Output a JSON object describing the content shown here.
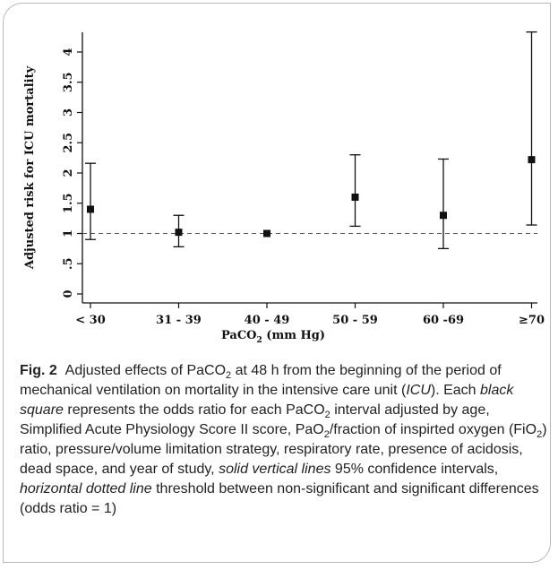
{
  "chart_data": {
    "type": "scatter",
    "subtype": "point-with-error-bars",
    "xlabel": "PaCO2 (mm Hg)",
    "xlabel_main": "PaCO",
    "xlabel_sub": "2",
    "xlabel_rest": " (mm Hg)",
    "ylabel": "Adjusted risk for ICU mortality",
    "ylim": [
      0,
      4.5
    ],
    "yticks": [
      0,
      0.5,
      1,
      1.5,
      2,
      2.5,
      3,
      3.5,
      4
    ],
    "ytick_labels": [
      "0",
      ".5",
      "1",
      "1.5",
      "2",
      "2.5",
      "3",
      "3.5",
      "4"
    ],
    "categories": [
      "< 30",
      "31 - 39",
      "40 - 49",
      "50 - 59",
      "60 -69",
      "≥70"
    ],
    "values": [
      1.4,
      1.02,
      1.0,
      1.6,
      1.3,
      2.22
    ],
    "ci_lower": [
      0.9,
      0.78,
      1.0,
      1.12,
      0.75,
      1.14
    ],
    "ci_upper": [
      2.16,
      1.3,
      1.0,
      2.3,
      2.23,
      4.33
    ],
    "reference_line": 1,
    "reference_style": "dashed",
    "marker": "square",
    "marker_color": "#111111",
    "grid": false
  },
  "caption": {
    "fig_label": "Fig. 2",
    "segments": [
      {
        "t": "Adjusted effects of PaCO",
        "s": "n"
      },
      {
        "t": "2",
        "s": "sub"
      },
      {
        "t": " at 48 h from the beginning of the period of mechanical ventilation on mortality in the intensive care unit (",
        "s": "n"
      },
      {
        "t": "ICU",
        "s": "i"
      },
      {
        "t": "). Each ",
        "s": "n"
      },
      {
        "t": "black square",
        "s": "i"
      },
      {
        "t": " represents the odds ratio for each PaCO",
        "s": "n"
      },
      {
        "t": "2",
        "s": "sub"
      },
      {
        "t": " interval adjusted by age, Simplified Acute Physiology Score II score, PaO",
        "s": "n"
      },
      {
        "t": "2",
        "s": "sub"
      },
      {
        "t": "/fraction of inspirted oxygen (FiO",
        "s": "n"
      },
      {
        "t": "2",
        "s": "sub"
      },
      {
        "t": ") ratio, pressure/volume limitation strategy, respiratory rate, presence of acidosis, dead space, and year of study, ",
        "s": "n"
      },
      {
        "t": "solid vertical lines",
        "s": "i"
      },
      {
        "t": " 95% confidence intervals, ",
        "s": "n"
      },
      {
        "t": "horizontal dotted line",
        "s": "i"
      },
      {
        "t": " threshold between non-significant and significant differences (odds ratio = 1)",
        "s": "n"
      }
    ]
  }
}
